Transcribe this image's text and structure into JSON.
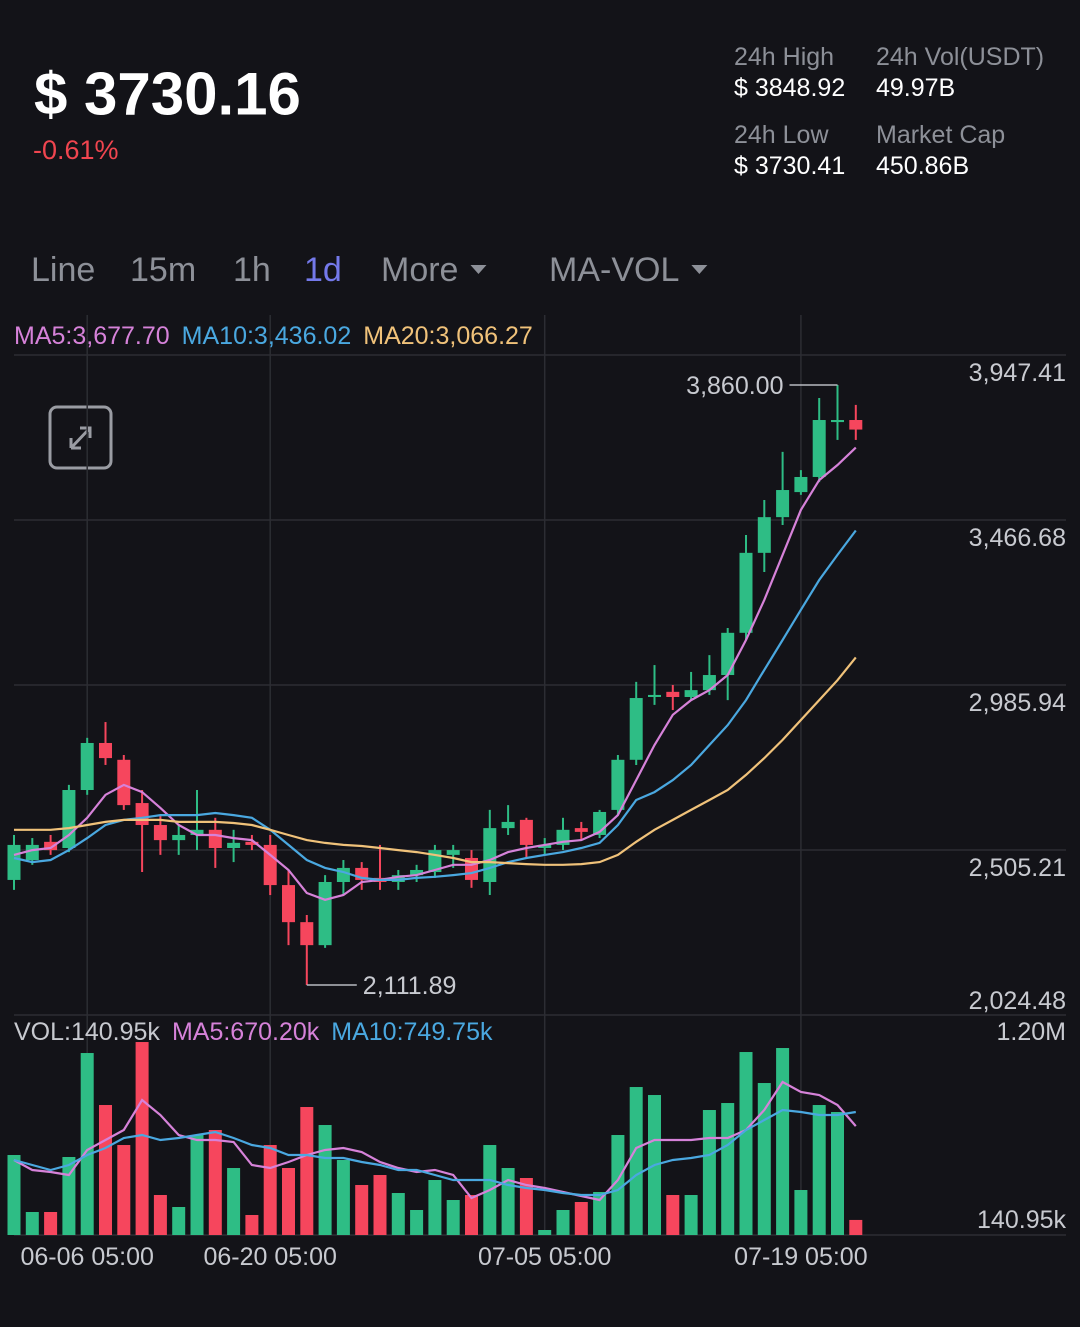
{
  "header": {
    "price": "$ 3730.16",
    "change": "-0.61%",
    "stats": [
      {
        "label": "24h High",
        "value": "$ 3848.92"
      },
      {
        "label": "24h Vol(USDT)",
        "value": "49.97B"
      },
      {
        "label": "24h Low",
        "value": "$ 3730.41"
      },
      {
        "label": "Market Cap",
        "value": "450.86B"
      }
    ]
  },
  "tabs": [
    {
      "label": "Line"
    },
    {
      "label": "15m"
    },
    {
      "label": "1h"
    },
    {
      "label": "1d",
      "active": true
    },
    {
      "label": "More",
      "dropdown": true
    },
    {
      "label": "MA-VOL",
      "dropdown": true
    }
  ],
  "chart_data": {
    "type": "candlestick",
    "up_color": "#2ebd85",
    "down_color": "#f6465d",
    "categories": [
      null,
      null,
      null,
      null,
      "06-06 05:00",
      null,
      null,
      null,
      null,
      null,
      null,
      null,
      null,
      null,
      "06-20 05:00",
      null,
      null,
      null,
      null,
      null,
      null,
      null,
      null,
      null,
      null,
      null,
      null,
      null,
      null,
      "07-05 05:00",
      null,
      null,
      null,
      null,
      null,
      null,
      null,
      null,
      null,
      null,
      null,
      null,
      null,
      "07-19 05:00",
      null,
      null,
      null
    ],
    "open": [
      2418,
      2476,
      2529,
      2511,
      2680,
      2817,
      2768,
      2642,
      2578,
      2534,
      2549,
      2564,
      2511,
      2529,
      2520,
      2403,
      2295,
      2228,
      2412,
      2453,
      2424,
      2412,
      2432,
      2441,
      2491,
      2482,
      2412,
      2569,
      2593,
      2511,
      2520,
      2569,
      2549,
      2622,
      2768,
      2951,
      2966,
      2951,
      2971,
      3015,
      3138,
      3371,
      3475,
      3548,
      3592,
      3752,
      3758
    ],
    "high": [
      2549,
      2540,
      2549,
      2695,
      2832,
      2878,
      2782,
      2680,
      2607,
      2578,
      2680,
      2599,
      2564,
      2549,
      2549,
      2447,
      2316,
      2432,
      2476,
      2470,
      2520,
      2447,
      2462,
      2520,
      2520,
      2505,
      2622,
      2636,
      2599,
      2540,
      2599,
      2587,
      2622,
      2782,
      2995,
      3044,
      2986,
      3024,
      3073,
      3152,
      3423,
      3525,
      3665,
      3612,
      3822,
      3860,
      3802
    ],
    "low": [
      2389,
      2462,
      2491,
      2499,
      2666,
      2753,
      2622,
      2441,
      2491,
      2491,
      2505,
      2453,
      2470,
      2505,
      2374,
      2228,
      2111.89,
      2220,
      2374,
      2389,
      2389,
      2389,
      2412,
      2424,
      2453,
      2395,
      2374,
      2549,
      2482,
      2491,
      2505,
      2534,
      2540,
      2607,
      2753,
      2928,
      2913,
      2942,
      2957,
      2942,
      3117,
      3315,
      3452,
      3540,
      3577,
      3700,
      3700
    ],
    "close": [
      2520,
      2520,
      2505,
      2680,
      2817,
      2773,
      2636,
      2578,
      2534,
      2549,
      2564,
      2511,
      2526,
      2520,
      2403,
      2295,
      2228,
      2412,
      2453,
      2418,
      2412,
      2432,
      2447,
      2505,
      2505,
      2418,
      2569,
      2587,
      2520,
      2520,
      2564,
      2558,
      2616,
      2768,
      2948,
      2957,
      2951,
      2971,
      3015,
      3138,
      3371,
      3475,
      3554,
      3592,
      3758,
      3758,
      3730.16
    ],
    "high_label": "3,860.00",
    "low_label": "2,111.89",
    "ylim": [
      2024.48,
      3947.41
    ],
    "yticks": [
      {
        "value": 3947.41,
        "label": "3,947.41"
      },
      {
        "value": 3466.68,
        "label": "3,466.68"
      },
      {
        "value": 2985.94,
        "label": "2,985.94"
      },
      {
        "value": 2505.21,
        "label": "2,505.21"
      },
      {
        "value": 2024.48,
        "label": "2,024.48"
      }
    ],
    "grid": true,
    "series": [
      {
        "name": "MA5",
        "legend": "MA5:3,677.70",
        "color": "#d682d9",
        "values": [
          2491,
          2505,
          2511,
          2549,
          2599,
          2666,
          2695,
          2674,
          2628,
          2578,
          2549,
          2549,
          2540,
          2534,
          2491,
          2447,
          2380,
          2360,
          2374,
          2412,
          2418,
          2427,
          2432,
          2447,
          2462,
          2462,
          2476,
          2499,
          2511,
          2520,
          2529,
          2534,
          2558,
          2607,
          2709,
          2811,
          2899,
          2942,
          2971,
          3015,
          3117,
          3234,
          3365,
          3496,
          3583,
          3627,
          3677.7
        ]
      },
      {
        "name": "MA10",
        "legend": "MA10:3,436.02",
        "color": "#4aa8e0",
        "values": [
          2482,
          2470,
          2476,
          2505,
          2540,
          2578,
          2593,
          2599,
          2607,
          2607,
          2607,
          2613,
          2607,
          2599,
          2564,
          2520,
          2476,
          2453,
          2441,
          2424,
          2418,
          2418,
          2424,
          2427,
          2432,
          2438,
          2453,
          2470,
          2482,
          2491,
          2499,
          2511,
          2526,
          2578,
          2651,
          2674,
          2709,
          2753,
          2811,
          2869,
          2942,
          3030,
          3117,
          3205,
          3292,
          3365,
          3436.02
        ]
      },
      {
        "name": "MA20",
        "legend": "MA20:3,066.27",
        "color": "#f0c27a",
        "values": [
          2564,
          2564,
          2564,
          2569,
          2578,
          2587,
          2593,
          2593,
          2593,
          2587,
          2587,
          2587,
          2584,
          2578,
          2564,
          2549,
          2534,
          2526,
          2520,
          2517,
          2511,
          2505,
          2499,
          2491,
          2482,
          2470,
          2470,
          2467,
          2464,
          2462,
          2462,
          2464,
          2470,
          2491,
          2529,
          2564,
          2593,
          2622,
          2651,
          2680,
          2724,
          2773,
          2826,
          2884,
          2942,
          3000,
          3066.27
        ]
      }
    ],
    "volume": {
      "legend": "VOL:140.95k",
      "legend_color": "#c7c9cf",
      "values": [
        507200,
        185720,
        185720,
        495920,
        1082480,
        789200,
        563600,
        1144520,
        281600,
        213920,
        620000,
        648200,
        433880,
        168800,
        563600,
        433880,
        777920,
        676400,
        479000,
        338000,
        394400,
        292880,
        197000,
        366200,
        253400,
        281600,
        563600,
        433880,
        377480,
        84200,
        197000,
        242120,
        298520,
        620000,
        890720,
        845600,
        281600,
        281600,
        761000,
        800480,
        1088120,
        913280,
        1110680,
        309800,
        789200,
        749720,
        140950
      ],
      "ylim": [
        56000,
        1280000
      ],
      "yticks": [
        {
          "value": 1200000,
          "label": "1.20M"
        },
        {
          "value": 140950,
          "label": "140.95k"
        }
      ],
      "series": [
        {
          "name": "MA5",
          "legend": "MA5:670.20k",
          "color": "#d682d9",
          "values": [
            479000,
            422600,
            411320,
            394400,
            535400,
            591800,
            648200,
            817400,
            732800,
            620000,
            591800,
            591800,
            580520,
            450800,
            433880,
            467720,
            507200,
            535400,
            546680,
            524120,
            467720,
            433880,
            411320,
            422600,
            394400,
            264680,
            309800,
            366200,
            338000,
            321080,
            298520,
            275960,
            253400,
            366200,
            546680,
            591800,
            591800,
            591800,
            603080,
            603080,
            648200,
            761000,
            918920,
            862520,
            845600,
            789200,
            670200
          ]
        },
        {
          "name": "MA10",
          "legend": "MA10:749.75k",
          "color": "#4aa8e0",
          "values": [
            479000,
            450800,
            422600,
            450800,
            507200,
            546680,
            603080,
            620000,
            591800,
            603080,
            620000,
            636920,
            603080,
            563600,
            546680,
            507200,
            507200,
            490280,
            490280,
            467720,
            450800,
            422600,
            422600,
            394400,
            366200,
            366200,
            366200,
            338000,
            321080,
            309800,
            292880,
            281600,
            281600,
            309800,
            394400,
            450800,
            479000,
            490280,
            507200,
            563600,
            648200,
            704600,
            761000,
            749720,
            732800,
            732800,
            749750
          ]
        }
      ]
    }
  }
}
